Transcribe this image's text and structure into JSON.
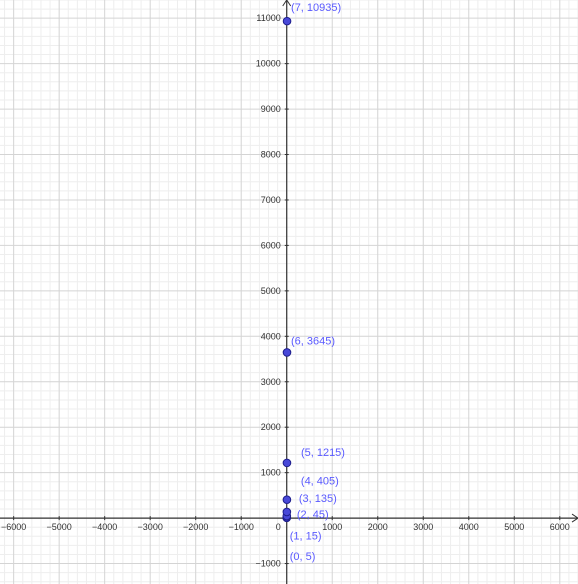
{
  "colors": {
    "point_fill": "#4848d8",
    "point_stroke": "#1e1e8c",
    "label": "#5a5aff",
    "axis": "#333333",
    "grid_major": "#d4d4d4",
    "grid_minor": "#eeeeee",
    "background": "#ffffff"
  },
  "chart_data": {
    "type": "scatter",
    "title": "",
    "xlabel": "",
    "ylabel": "",
    "xlim": [
      -6300,
      6400
    ],
    "ylim": [
      -1450,
      11400
    ],
    "grid": true,
    "x_ticks": [
      -6000,
      -5000,
      -4000,
      -3000,
      -2000,
      -1000,
      1000,
      2000,
      3000,
      4000,
      5000,
      6000
    ],
    "x_tick_labels": [
      "−6000",
      "−5000",
      "−4000",
      "−3000",
      "−2000",
      "−1000",
      "1000",
      "2000",
      "3000",
      "4000",
      "5000",
      "6000"
    ],
    "y_ticks": [
      -1000,
      1000,
      2000,
      3000,
      4000,
      5000,
      6000,
      7000,
      8000,
      9000,
      10000,
      11000
    ],
    "y_tick_labels": [
      "−1000",
      "1000",
      "2000",
      "3000",
      "4000",
      "5000",
      "6000",
      "7000",
      "8000",
      "9000",
      "10000",
      "11000"
    ],
    "origin_label": "0",
    "series": [
      {
        "points": [
          {
            "x": 0,
            "y": 5,
            "label": "(0, 5)"
          },
          {
            "x": 1,
            "y": 15,
            "label": "(1, 15)"
          },
          {
            "x": 2,
            "y": 45,
            "label": "(2, 45)"
          },
          {
            "x": 3,
            "y": 135,
            "label": "(3, 135)"
          },
          {
            "x": 4,
            "y": 405,
            "label": "(4, 405)"
          },
          {
            "x": 5,
            "y": 1215,
            "label": "(5, 1215)"
          },
          {
            "x": 6,
            "y": 3645,
            "label": "(6, 3645)"
          },
          {
            "x": 7,
            "y": 10935,
            "label": "(7, 10935)"
          }
        ]
      }
    ]
  }
}
